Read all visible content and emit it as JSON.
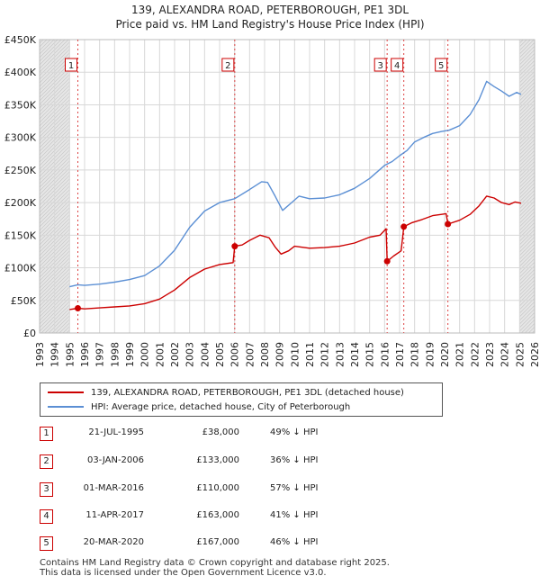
{
  "title_line1": "139, ALEXANDRA ROAD, PETERBOROUGH, PE1 3DL",
  "title_line2": "Price paid vs. HM Land Registry's House Price Index (HPI)",
  "chart_data": {
    "type": "line",
    "xlim": [
      1993,
      2026
    ],
    "ylim": [
      0,
      450000
    ],
    "x_ticks": [
      "1993",
      "1994",
      "1995",
      "1996",
      "1997",
      "1998",
      "1999",
      "2000",
      "2001",
      "2002",
      "2003",
      "2004",
      "2005",
      "2006",
      "2007",
      "2008",
      "2009",
      "2010",
      "2011",
      "2012",
      "2013",
      "2014",
      "2015",
      "2016",
      "2017",
      "2018",
      "2019",
      "2020",
      "2021",
      "2022",
      "2023",
      "2024",
      "2025",
      "2026"
    ],
    "y_ticks": [
      {
        "value": 0,
        "label": "£0"
      },
      {
        "value": 50000,
        "label": "£50K"
      },
      {
        "value": 100000,
        "label": "£100K"
      },
      {
        "value": 150000,
        "label": "£150K"
      },
      {
        "value": 200000,
        "label": "£200K"
      },
      {
        "value": 250000,
        "label": "£250K"
      },
      {
        "value": 300000,
        "label": "£300K"
      },
      {
        "value": 350000,
        "label": "£350K"
      },
      {
        "value": 400000,
        "label": "£400K"
      },
      {
        "value": 450000,
        "label": "£450K"
      }
    ],
    "shaded_regions": [
      [
        1993,
        1995.0
      ],
      [
        2025.0,
        2026
      ]
    ],
    "series": [
      {
        "name": "139, ALEXANDRA ROAD, PETERBOROUGH, PE1 3DL (detached house)",
        "color": "#cc0000",
        "points": [
          [
            1995.0,
            36000
          ],
          [
            1995.55,
            38000
          ],
          [
            1996,
            37000
          ],
          [
            1997,
            38500
          ],
          [
            1998,
            40000
          ],
          [
            1999,
            41500
          ],
          [
            2000,
            45000
          ],
          [
            2001,
            52000
          ],
          [
            2002,
            66000
          ],
          [
            2003,
            85000
          ],
          [
            2004,
            98000
          ],
          [
            2005,
            105000
          ],
          [
            2005.9,
            108000
          ],
          [
            2006.01,
            133000
          ],
          [
            2006.5,
            135000
          ],
          [
            2007,
            142000
          ],
          [
            2007.7,
            150000
          ],
          [
            2008.3,
            146000
          ],
          [
            2008.7,
            132000
          ],
          [
            2009.1,
            121000
          ],
          [
            2009.6,
            126000
          ],
          [
            2010,
            133000
          ],
          [
            2011,
            130000
          ],
          [
            2012,
            131000
          ],
          [
            2013,
            133000
          ],
          [
            2014,
            138000
          ],
          [
            2015,
            147000
          ],
          [
            2015.7,
            150000
          ],
          [
            2016.1,
            160000
          ],
          [
            2016.17,
            110000
          ],
          [
            2016.6,
            118000
          ],
          [
            2017.1,
            126000
          ],
          [
            2017.28,
            163000
          ],
          [
            2017.8,
            169000
          ],
          [
            2018.5,
            174000
          ],
          [
            2019.2,
            180000
          ],
          [
            2019.8,
            182000
          ],
          [
            2020.1,
            183000
          ],
          [
            2020.22,
            167000
          ],
          [
            2021,
            173000
          ],
          [
            2021.7,
            182000
          ],
          [
            2022.3,
            195000
          ],
          [
            2022.8,
            210000
          ],
          [
            2023.3,
            207000
          ],
          [
            2023.8,
            200000
          ],
          [
            2024.3,
            197000
          ],
          [
            2024.7,
            201000
          ],
          [
            2025.1,
            199000
          ]
        ]
      },
      {
        "name": "HPI: Average price, detached house, City of Peterborough",
        "color": "#5b8fd4",
        "points": [
          [
            1995.0,
            71000
          ],
          [
            1995.55,
            74000
          ],
          [
            1996,
            73000
          ],
          [
            1997,
            75000
          ],
          [
            1998,
            78000
          ],
          [
            1999,
            82000
          ],
          [
            2000,
            88000
          ],
          [
            2001,
            103000
          ],
          [
            2002,
            127000
          ],
          [
            2003,
            162000
          ],
          [
            2004,
            187000
          ],
          [
            2005,
            200000
          ],
          [
            2006,
            206000
          ],
          [
            2007,
            220000
          ],
          [
            2007.8,
            232000
          ],
          [
            2008.2,
            231000
          ],
          [
            2008.7,
            210000
          ],
          [
            2009.2,
            188000
          ],
          [
            2009.7,
            198000
          ],
          [
            2010.3,
            210000
          ],
          [
            2011,
            206000
          ],
          [
            2012,
            207000
          ],
          [
            2013,
            212000
          ],
          [
            2014,
            222000
          ],
          [
            2015,
            237000
          ],
          [
            2016,
            257000
          ],
          [
            2016.5,
            263000
          ],
          [
            2017,
            272000
          ],
          [
            2017.5,
            280000
          ],
          [
            2018,
            293000
          ],
          [
            2018.6,
            300000
          ],
          [
            2019.2,
            306000
          ],
          [
            2019.8,
            309000
          ],
          [
            2020.3,
            311000
          ],
          [
            2021,
            318000
          ],
          [
            2021.7,
            335000
          ],
          [
            2022.3,
            358000
          ],
          [
            2022.8,
            386000
          ],
          [
            2023.3,
            378000
          ],
          [
            2023.8,
            371000
          ],
          [
            2024.3,
            363000
          ],
          [
            2024.8,
            369000
          ],
          [
            2025.1,
            366000
          ]
        ]
      }
    ],
    "markers": [
      {
        "label": "1",
        "x": 1995.55,
        "y": 38000
      },
      {
        "label": "2",
        "x": 2006.01,
        "y": 133000
      },
      {
        "label": "3",
        "x": 2016.17,
        "y": 110000
      },
      {
        "label": "4",
        "x": 2017.28,
        "y": 163000
      },
      {
        "label": "5",
        "x": 2020.22,
        "y": 167000
      }
    ]
  },
  "legend": {
    "red": "139, ALEXANDRA ROAD, PETERBOROUGH, PE1 3DL (detached house)",
    "blue": "HPI: Average price, detached house, City of Peterborough"
  },
  "transactions": [
    {
      "num": "1",
      "date": "21-JUL-1995",
      "price": "£38,000",
      "hpi": "49% ↓ HPI"
    },
    {
      "num": "2",
      "date": "03-JAN-2006",
      "price": "£133,000",
      "hpi": "36% ↓ HPI"
    },
    {
      "num": "3",
      "date": "01-MAR-2016",
      "price": "£110,000",
      "hpi": "57% ↓ HPI"
    },
    {
      "num": "4",
      "date": "11-APR-2017",
      "price": "£163,000",
      "hpi": "41% ↓ HPI"
    },
    {
      "num": "5",
      "date": "20-MAR-2020",
      "price": "£167,000",
      "hpi": "46% ↓ HPI"
    }
  ],
  "footer": {
    "line1": "Contains HM Land Registry data © Crown copyright and database right 2025.",
    "line2": "This data is licensed under the Open Government Licence v3.0."
  }
}
